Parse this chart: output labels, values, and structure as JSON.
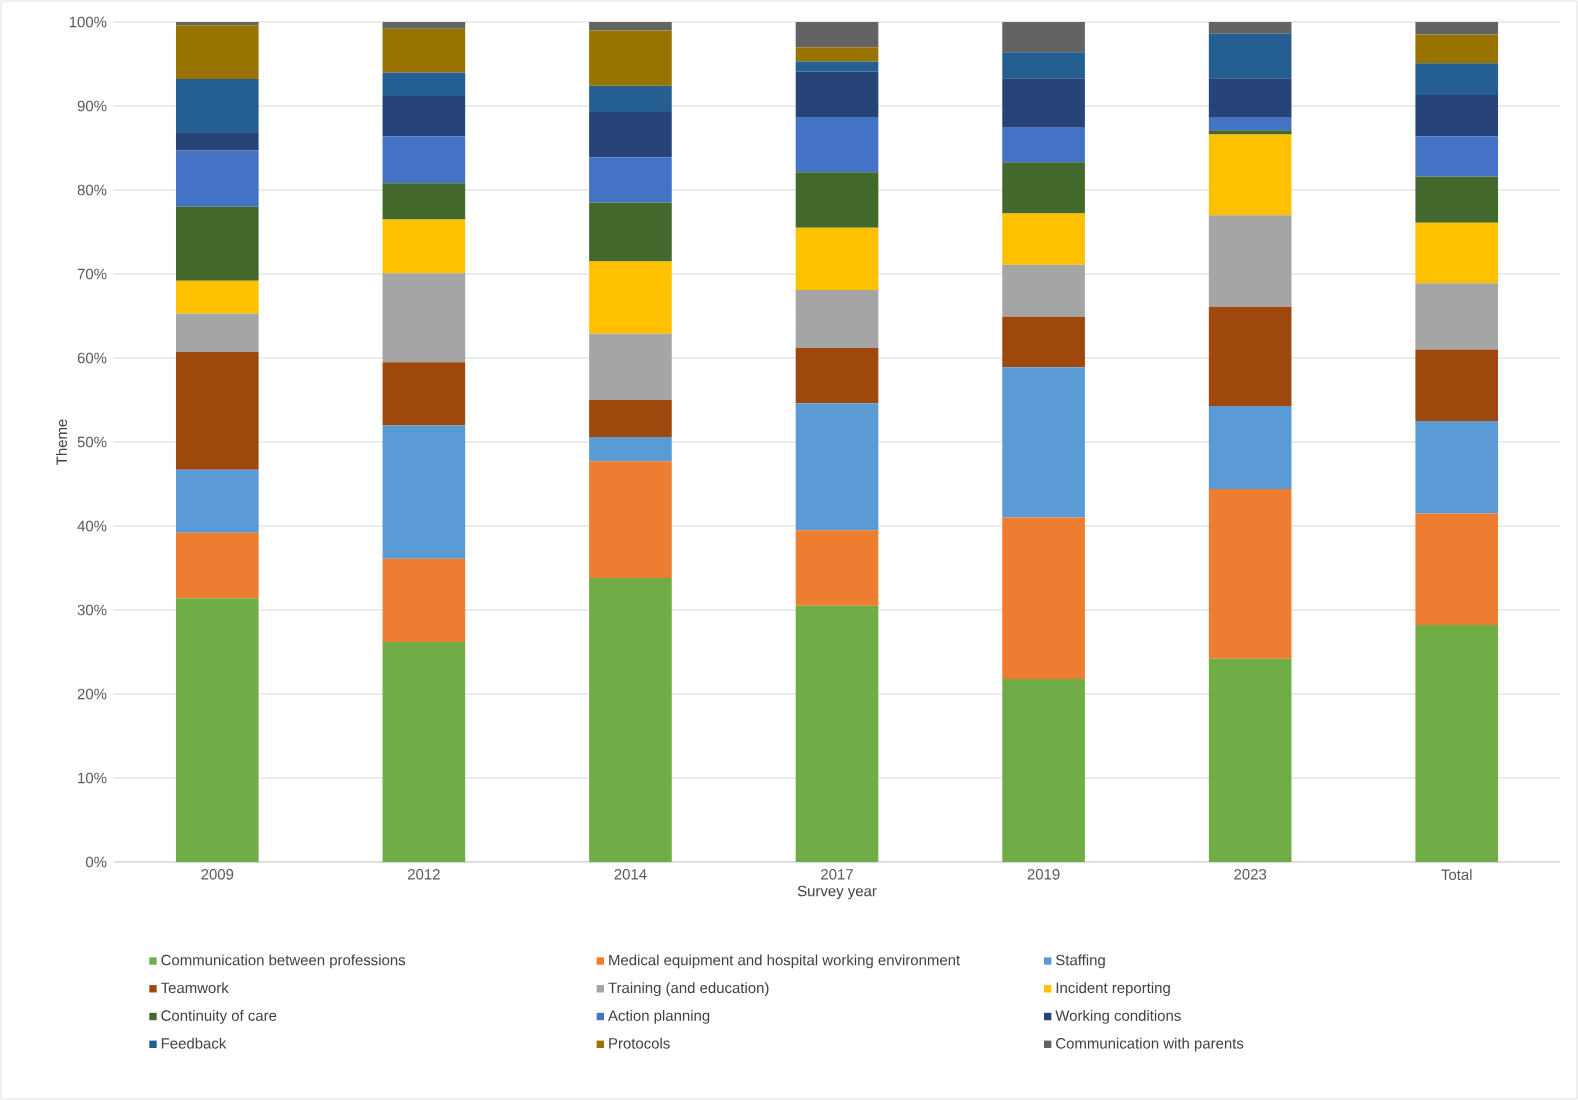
{
  "chart_data": {
    "type": "bar",
    "stacked": true,
    "xlabel": "Survey year",
    "ylabel": "Theme",
    "categories": [
      "2009",
      "2012",
      "2014",
      "2017",
      "2019",
      "2023",
      "Total"
    ],
    "ylim": [
      0,
      100
    ],
    "yticks": [
      {
        "value": 0,
        "label": "0%"
      },
      {
        "value": 10,
        "label": "10%"
      },
      {
        "value": 20,
        "label": "20%"
      },
      {
        "value": 30,
        "label": "30%"
      },
      {
        "value": 40,
        "label": "40%"
      },
      {
        "value": 50,
        "label": "50%"
      },
      {
        "value": 60,
        "label": "60%"
      },
      {
        "value": 70,
        "label": "70%"
      },
      {
        "value": 80,
        "label": "80%"
      },
      {
        "value": 90,
        "label": "90%"
      },
      {
        "value": 100,
        "label": "100%"
      }
    ],
    "grid": "y",
    "legend": "bottom",
    "series": [
      {
        "name": "Communication between professions",
        "color": "#70ad47",
        "values": [
          31.4,
          26.2,
          33.8,
          30.5,
          21.8,
          24.2,
          28.2
        ]
      },
      {
        "name": "Medical equipment and hospital working environment",
        "color": "#ed7d31",
        "values": [
          7.8,
          9.9,
          13.9,
          9.0,
          19.2,
          20.2,
          13.3
        ]
      },
      {
        "name": "Staffing",
        "color": "#5b9bd5",
        "values": [
          7.5,
          15.9,
          2.9,
          15.1,
          17.9,
          9.9,
          11.0
        ]
      },
      {
        "name": "Teamwork",
        "color": "#9e480e",
        "values": [
          14.0,
          7.5,
          4.4,
          6.6,
          6.0,
          11.8,
          8.5
        ]
      },
      {
        "name": "Training (and education)",
        "color": "#a5a5a5",
        "values": [
          4.6,
          10.6,
          7.9,
          6.9,
          6.2,
          10.9,
          7.9
        ]
      },
      {
        "name": "Incident reporting",
        "color": "#ffc000",
        "values": [
          3.9,
          6.4,
          8.6,
          7.4,
          6.1,
          9.6,
          7.2
        ]
      },
      {
        "name": "Continuity of care",
        "color": "#43682b",
        "values": [
          8.8,
          4.3,
          7.0,
          6.6,
          6.1,
          0.5,
          5.5
        ]
      },
      {
        "name": "Action planning",
        "color": "#4472c4",
        "values": [
          6.7,
          5.6,
          5.4,
          6.6,
          4.1,
          1.5,
          4.8
        ]
      },
      {
        "name": "Working conditions",
        "color": "#264478",
        "values": [
          2.1,
          4.8,
          5.4,
          5.4,
          5.9,
          4.7,
          4.9
        ]
      },
      {
        "name": "Feedback",
        "color": "#255e91",
        "values": [
          6.4,
          2.8,
          3.1,
          1.2,
          3.1,
          5.3,
          3.8
        ]
      },
      {
        "name": "Protocols",
        "color": "#997300",
        "values": [
          6.4,
          5.2,
          6.6,
          1.7,
          0,
          0,
          3.4
        ]
      },
      {
        "name": "Communication with parents",
        "color": "#636363",
        "values": [
          0.4,
          0.8,
          1.0,
          3.0,
          3.6,
          1.4,
          1.5
        ]
      }
    ]
  }
}
